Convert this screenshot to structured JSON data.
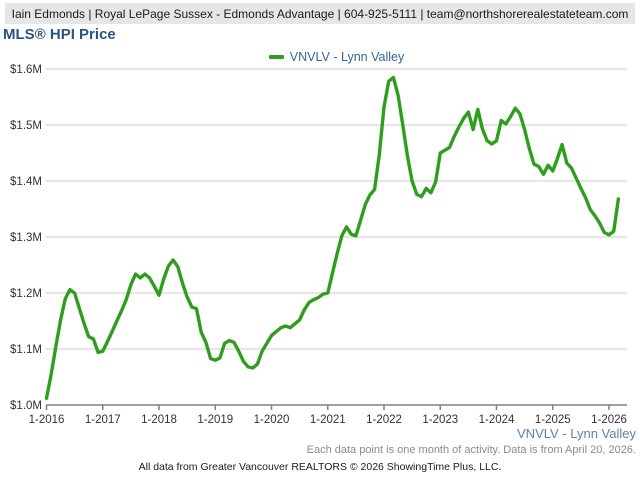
{
  "header": {
    "text": "Iain Edmonds | Royal LePage Sussex - Edmonds Advantage | 604-925-5111 | team@northshorerealestateteam.com"
  },
  "title": {
    "text": "MLS® HPI Price"
  },
  "footer": {
    "series_label": "VNVLV - Lynn Valley",
    "note": "Each data point is one month of activity. Data is from April 20, 2026.",
    "attribution": "All data from Greater Vancouver REALTORS © 2026 ShowingTime Plus, LLC."
  },
  "colors": {
    "line_green": "#2f9e1f",
    "title_blue": "#2a5580",
    "legend_blue": "#336699",
    "footer_series_blue": "#5b84ad",
    "header_bg": "#e6e6e6",
    "grid": "#cccccc",
    "axis": "#808080",
    "axis_text": "#333333"
  },
  "chart_data": {
    "type": "line",
    "title": "MLS® HPI Price",
    "xlabel": "",
    "ylabel": "",
    "unit": "$M",
    "grid": "horizontal",
    "legend_position": "top-center",
    "ylim": [
      1.0,
      1.6
    ],
    "y_tick_labels": [
      "$1.0M",
      "$1.1M",
      "$1.2M",
      "$1.3M",
      "$1.4M",
      "$1.5M",
      "$1.6M"
    ],
    "x_tick_labels": [
      "1-2016",
      "1-2017",
      "1-2018",
      "1-2019",
      "1-2020",
      "1-2021",
      "1-2022",
      "1-2023",
      "1-2024",
      "1-2025",
      "1-2026"
    ],
    "x_monthly_start": "2016-01",
    "x_monthly_end": "2026-03",
    "series": [
      {
        "name": "VNVLV - Lynn Valley",
        "color": "#2f9e1f",
        "monthly_values": [
          1.012,
          1.055,
          1.105,
          1.152,
          1.19,
          1.206,
          1.2,
          1.173,
          1.146,
          1.122,
          1.118,
          1.094,
          1.096,
          1.113,
          1.131,
          1.15,
          1.168,
          1.188,
          1.215,
          1.234,
          1.227,
          1.234,
          1.227,
          1.212,
          1.196,
          1.225,
          1.248,
          1.259,
          1.247,
          1.218,
          1.193,
          1.175,
          1.172,
          1.13,
          1.112,
          1.083,
          1.08,
          1.084,
          1.11,
          1.115,
          1.112,
          1.096,
          1.078,
          1.068,
          1.066,
          1.073,
          1.096,
          1.11,
          1.124,
          1.131,
          1.138,
          1.141,
          1.138,
          1.145,
          1.152,
          1.17,
          1.183,
          1.188,
          1.192,
          1.198,
          1.2,
          1.235,
          1.27,
          1.302,
          1.318,
          1.305,
          1.302,
          1.33,
          1.358,
          1.375,
          1.385,
          1.447,
          1.532,
          1.578,
          1.585,
          1.553,
          1.5,
          1.445,
          1.4,
          1.376,
          1.372,
          1.387,
          1.379,
          1.398,
          1.45,
          1.455,
          1.46,
          1.48,
          1.497,
          1.512,
          1.523,
          1.492,
          1.528,
          1.493,
          1.472,
          1.466,
          1.472,
          1.508,
          1.502,
          1.515,
          1.53,
          1.52,
          1.492,
          1.458,
          1.43,
          1.426,
          1.412,
          1.428,
          1.418,
          1.44,
          1.465,
          1.432,
          1.423,
          1.405,
          1.387,
          1.37,
          1.349,
          1.338,
          1.325,
          1.308,
          1.304,
          1.31,
          1.368
        ]
      }
    ]
  }
}
